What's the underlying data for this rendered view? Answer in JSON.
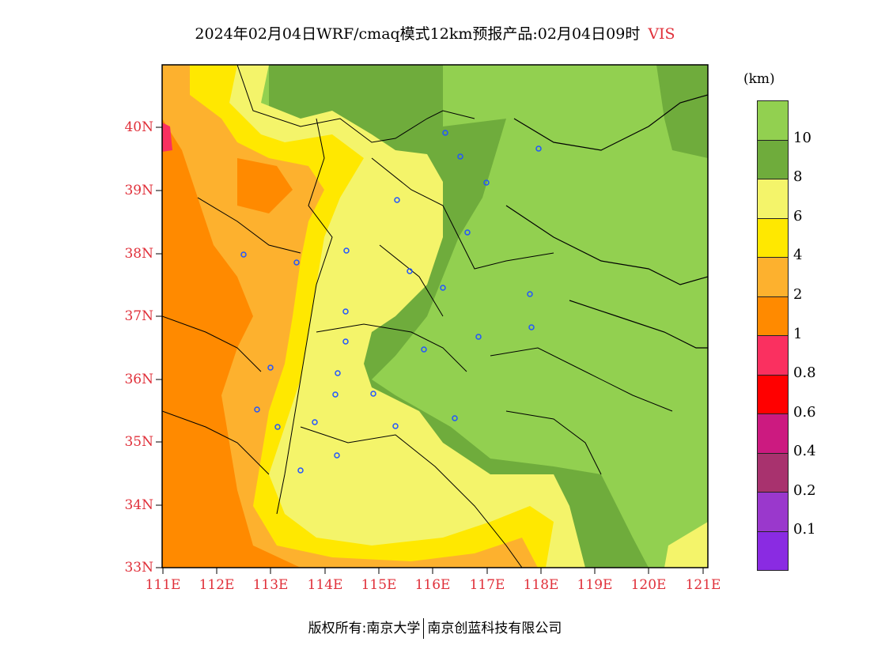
{
  "title": {
    "text": "2024年02月04日WRF/cmaq模式12km预报产品:02月04日09时",
    "variable": "VIS"
  },
  "axes": {
    "y_ticks": [
      "40N",
      "39N",
      "38N",
      "37N",
      "36N",
      "35N",
      "34N",
      "33N"
    ],
    "x_ticks": [
      "111E",
      "112E",
      "113E",
      "114E",
      "115E",
      "116E",
      "117E",
      "118E",
      "119E",
      "120E",
      "121E"
    ],
    "tick_color": "#e0303a"
  },
  "colorbar": {
    "unit": "(km)",
    "levels": [
      {
        "label": "10",
        "color": "#92d050"
      },
      {
        "label": "8",
        "color": "#6fac3c"
      },
      {
        "label": "6",
        "color": "#f4f46a"
      },
      {
        "label": "4",
        "color": "#ffe800"
      },
      {
        "label": "2",
        "color": "#fdb12e"
      },
      {
        "label": "1",
        "color": "#ff8a00"
      },
      {
        "label": "0.8",
        "color": "#fa3060"
      },
      {
        "label": "0.6",
        "color": "#ff0000"
      },
      {
        "label": "0.4",
        "color": "#cc1a80"
      },
      {
        "label": "0.2",
        "color": "#a8326e"
      },
      {
        "label": "0.1",
        "color": "#9a38cc"
      },
      {
        "label": "",
        "color": "#8a2be2"
      }
    ]
  },
  "footer": {
    "copyright": "版权所有:南京大学",
    "company": "南京创蓝科技有限公司"
  }
}
